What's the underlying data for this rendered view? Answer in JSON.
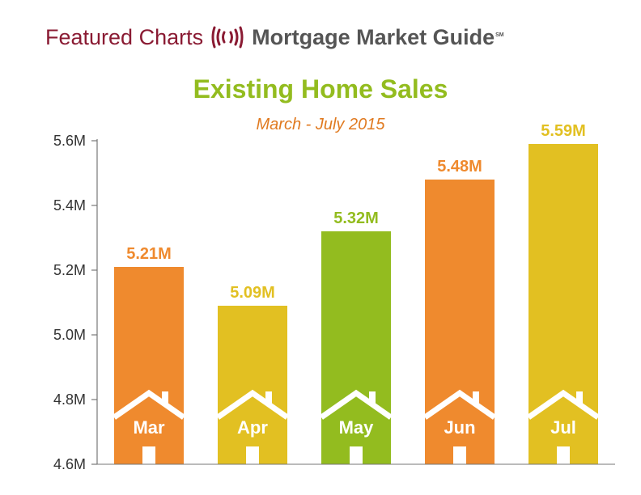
{
  "header": {
    "left_text": "Featured Charts",
    "right_text": "Mortgage Market Guide",
    "right_mark": "SM",
    "left_color": "#8a1b33",
    "right_color": "#555555",
    "logo_icon": "sound-waves-icon"
  },
  "chart_data": {
    "type": "bar",
    "title": "Existing Home Sales",
    "subtitle": "March - July 2015",
    "categories": [
      "Mar",
      "Apr",
      "May",
      "Jun",
      "Jul"
    ],
    "values": [
      5.21,
      5.09,
      5.32,
      5.48,
      5.59
    ],
    "data_labels": [
      "5.21M",
      "5.09M",
      "5.32M",
      "5.48M",
      "5.59M"
    ],
    "ylim": [
      4.6,
      5.6
    ],
    "yticks": [
      "4.6M",
      "4.8M",
      "5.0M",
      "5.2M",
      "5.4M",
      "5.6M"
    ],
    "ytick_values": [
      4.6,
      4.8,
      5.0,
      5.2,
      5.4,
      5.6
    ],
    "grid": false,
    "bar_colors": [
      "#ef8a2e",
      "#e2c022",
      "#93bc1f",
      "#ef8a2e",
      "#e2c022"
    ],
    "title_color": "#93bc1f",
    "subtitle_color": "#e07a20",
    "bar_icon": "house-icon"
  }
}
